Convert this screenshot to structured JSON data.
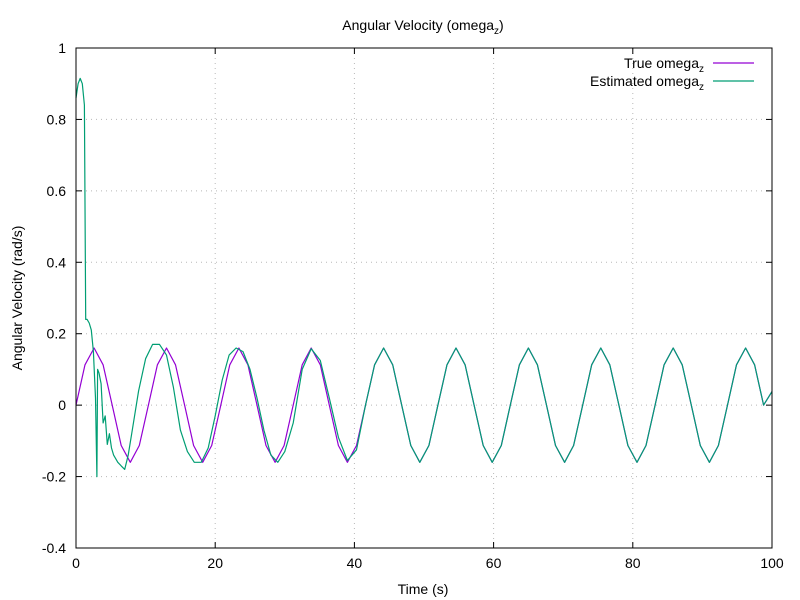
{
  "chart_data": {
    "type": "line",
    "title": "Angular Velocity (omega_z)",
    "title_main": "Angular Velocity (omega",
    "title_sub": "z",
    "title_end": ")",
    "xlabel": "Time (s)",
    "ylabel": "Angular Velocity (rad/s)",
    "xlim": [
      0,
      100
    ],
    "ylim": [
      -0.4,
      1
    ],
    "xticks": [
      0,
      20,
      40,
      60,
      80,
      100
    ],
    "xtick_labels": [
      "0",
      "20",
      "40",
      "60",
      "80",
      "100"
    ],
    "yticks": [
      -0.4,
      -0.2,
      0,
      0.2,
      0.4,
      0.6,
      0.8,
      1
    ],
    "ytick_labels": [
      "-0.4",
      "-0.2",
      "0",
      "0.2",
      "0.4",
      "0.6",
      "0.8",
      "1"
    ],
    "grid": true,
    "legend_position": "top-right",
    "series": [
      {
        "name": "True omega_z",
        "name_main": "True omega",
        "name_sub": "z",
        "color": "#9400d3",
        "x": [
          0,
          1.3,
          2.6,
          3.9,
          5.2,
          6.5,
          7.8,
          9.1,
          10.4,
          11.7,
          13.0,
          14.3,
          15.6,
          16.9,
          18.2,
          19.5,
          20.8,
          22.1,
          23.4,
          24.7,
          26.0,
          27.3,
          28.6,
          29.9,
          31.2,
          32.5,
          33.8,
          35.1,
          36.4,
          37.7,
          39.0,
          40.3,
          41.6,
          42.9,
          44.2,
          45.5,
          46.8,
          48.1,
          49.4,
          50.7,
          52.0,
          53.3,
          54.6,
          55.9,
          57.2,
          58.5,
          59.8,
          61.1,
          62.4,
          63.7,
          65.0,
          66.3,
          67.6,
          68.9,
          70.2,
          71.5,
          72.8,
          74.1,
          75.4,
          76.7,
          78.0,
          79.3,
          80.6,
          81.9,
          83.2,
          84.5,
          85.8,
          87.1,
          88.4,
          89.7,
          91.0,
          92.3,
          93.6,
          94.9,
          96.2,
          97.5,
          98.8,
          100
        ],
        "y": [
          0,
          0.113,
          0.16,
          0.113,
          0,
          -0.113,
          -0.16,
          -0.113,
          0,
          0.113,
          0.16,
          0.113,
          0,
          -0.113,
          -0.16,
          -0.113,
          0,
          0.113,
          0.16,
          0.113,
          0,
          -0.113,
          -0.16,
          -0.113,
          0,
          0.113,
          0.16,
          0.113,
          0,
          -0.113,
          -0.16,
          -0.113,
          0,
          0.113,
          0.16,
          0.113,
          0,
          -0.113,
          -0.16,
          -0.113,
          0,
          0.113,
          0.16,
          0.113,
          0,
          -0.113,
          -0.16,
          -0.113,
          0,
          0.113,
          0.16,
          0.113,
          0,
          -0.113,
          -0.16,
          -0.113,
          0,
          0.113,
          0.16,
          0.113,
          0,
          -0.113,
          -0.16,
          -0.113,
          0,
          0.113,
          0.16,
          0.113,
          0,
          -0.113,
          -0.16,
          -0.113,
          0,
          0.113,
          0.16,
          0.113,
          0,
          0.038
        ]
      },
      {
        "name": "Estimated omega_z",
        "name_main": "Estimated omega",
        "name_sub": "z",
        "color": "#009e73",
        "x": [
          0,
          0.3,
          0.6,
          0.9,
          1.2,
          1.4,
          1.6,
          1.9,
          2.2,
          2.5,
          2.8,
          3.0,
          3.1,
          3.3,
          3.6,
          3.9,
          4.2,
          4.5,
          4.8,
          5.1,
          5.4,
          5.7,
          6.0,
          6.5,
          7.0,
          7.5,
          8.0,
          9.0,
          10.0,
          11.0,
          12.0,
          13.0,
          14.0,
          15.0,
          16.0,
          17.0,
          18.0,
          19.0,
          20.0,
          21.0,
          22.0,
          23.0,
          24.0,
          25.0,
          26.0,
          27.0,
          28.0,
          29.0,
          30.0,
          31.2,
          32.5,
          33.8,
          35.1,
          36.4,
          37.7,
          39.0,
          40.3,
          41.6,
          42.9,
          44.2,
          45.5,
          46.8,
          48.1,
          49.4,
          50.7,
          52.0,
          53.3,
          54.6,
          55.9,
          57.2,
          58.5,
          59.8,
          61.1,
          62.4,
          63.7,
          65.0,
          66.3,
          67.6,
          68.9,
          70.2,
          71.5,
          72.8,
          74.1,
          75.4,
          76.7,
          78.0,
          79.3,
          80.6,
          81.9,
          83.2,
          84.5,
          85.8,
          87.1,
          88.4,
          89.7,
          91.0,
          92.3,
          93.6,
          94.9,
          96.2,
          97.5,
          98.8,
          100
        ],
        "y": [
          0.86,
          0.9,
          0.915,
          0.9,
          0.84,
          0.24,
          0.24,
          0.23,
          0.21,
          0.15,
          0.02,
          -0.2,
          0.1,
          0.09,
          0.06,
          -0.05,
          -0.03,
          -0.11,
          -0.08,
          -0.12,
          -0.14,
          -0.15,
          -0.16,
          -0.17,
          -0.18,
          -0.14,
          -0.08,
          0.04,
          0.13,
          0.17,
          0.17,
          0.14,
          0.05,
          -0.07,
          -0.13,
          -0.16,
          -0.16,
          -0.12,
          -0.03,
          0.07,
          0.14,
          0.16,
          0.15,
          0.1,
          0.02,
          -0.07,
          -0.14,
          -0.16,
          -0.13,
          -0.05,
          0.1,
          0.158,
          0.125,
          0.02,
          -0.09,
          -0.155,
          -0.125,
          0,
          0.113,
          0.16,
          0.113,
          0,
          -0.113,
          -0.16,
          -0.113,
          0,
          0.113,
          0.16,
          0.113,
          0,
          -0.113,
          -0.16,
          -0.113,
          0,
          0.113,
          0.16,
          0.113,
          0,
          -0.113,
          -0.16,
          -0.113,
          0,
          0.113,
          0.16,
          0.113,
          0,
          -0.113,
          -0.16,
          -0.113,
          0,
          0.113,
          0.16,
          0.113,
          0,
          -0.113,
          -0.16,
          -0.113,
          0,
          0.113,
          0.16,
          0.113,
          0,
          0.038
        ]
      }
    ]
  }
}
